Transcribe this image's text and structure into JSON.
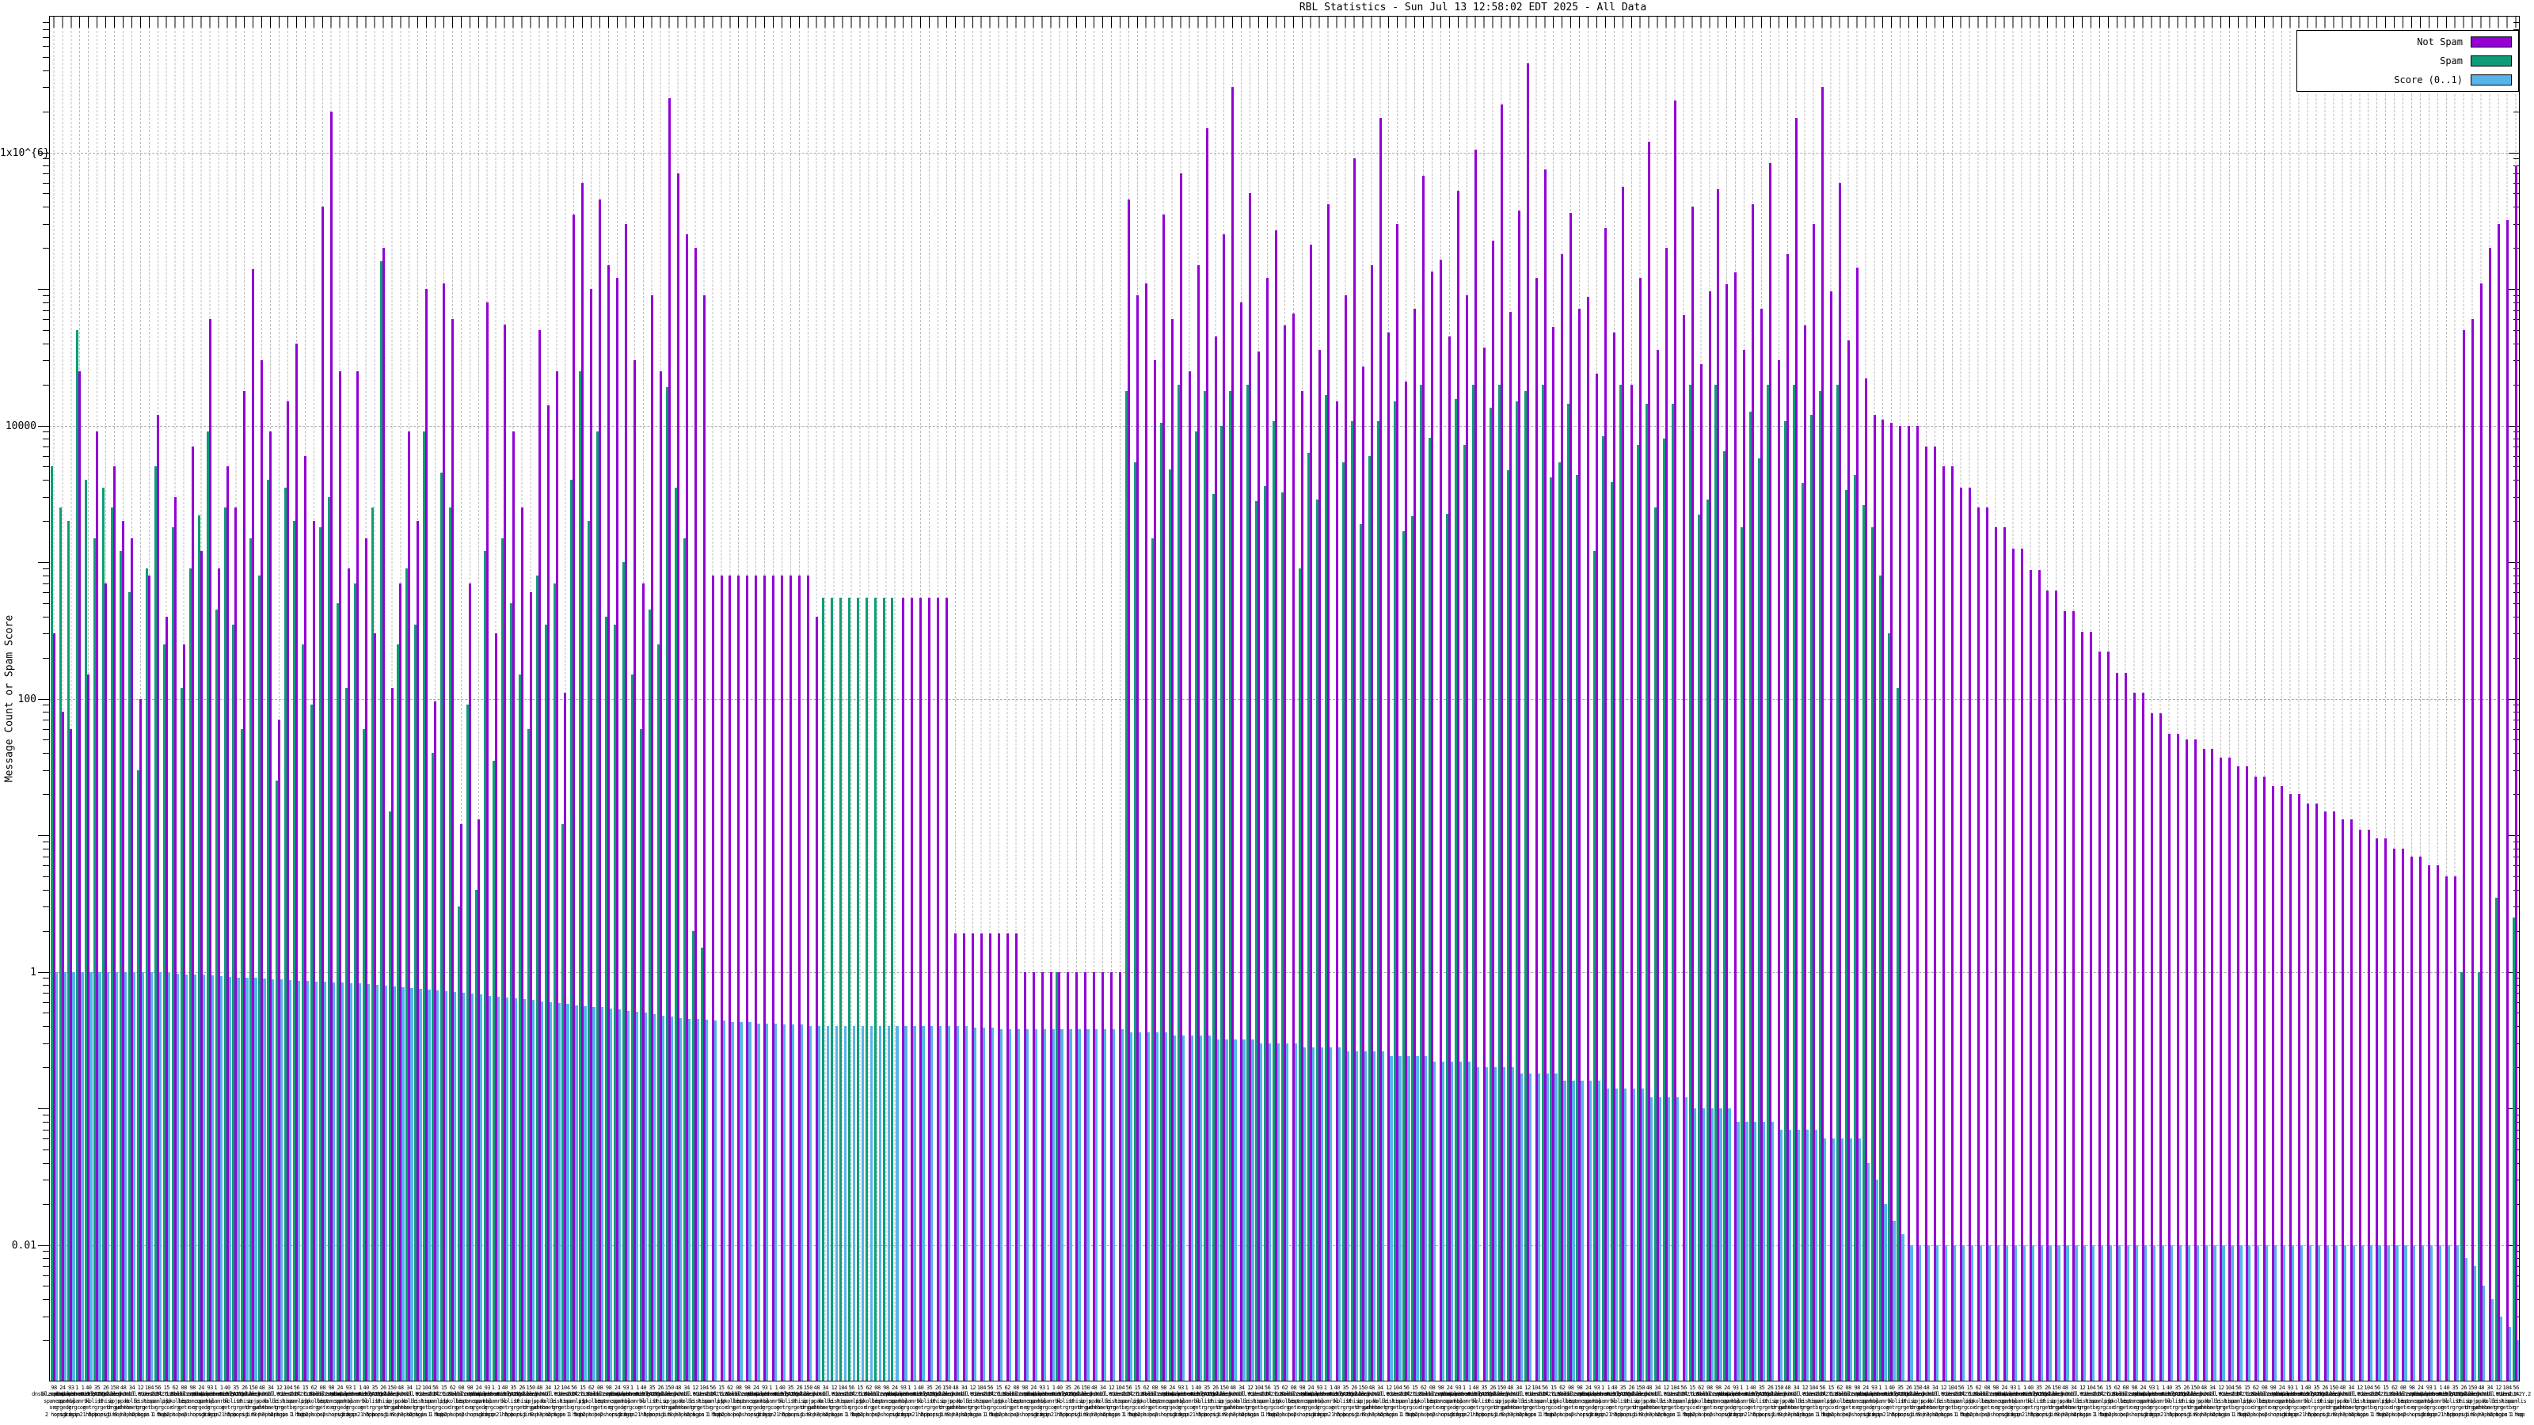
{
  "title": "RBL Statistics - Sun Jul 13 12:58:02 EDT 2025 - All Data",
  "axes": {
    "ylabel": "Message Count or Spam Score",
    "y_scale": "log",
    "ylim": [
      0.001,
      10000000
    ],
    "y_ticks": [
      {
        "label": "0.01",
        "value": 0.01
      },
      {
        "label": "1",
        "value": 1
      },
      {
        "label": "100",
        "value": 100
      },
      {
        "label": "10000",
        "value": 10000
      },
      {
        "label": "1x10^{6}",
        "value": 1000000
      }
    ]
  },
  "legend": [
    {
      "label": "Not Spam",
      "color": "#9400D3"
    },
    {
      "label": "Spam",
      "color": "#0E9C78"
    },
    {
      "label": "Score (0..1)",
      "color": "#56B4E9"
    }
  ],
  "chart_data": {
    "type": "bar",
    "y_scale": "log",
    "n_categories": 285,
    "series_order": [
      "spam",
      "not_spam",
      "score"
    ],
    "series_colors": {
      "not_spam": "#9400D3",
      "spam": "#0E9C78",
      "score": "#56B4E9"
    },
    "xtick_label_samples": [
      "98\ndnsbl.sorbs.net\nspamcop\norg\n2 hops",
      "24\nbl.spamcop.net\nspam\norgedr\norigin",
      "93\nzen.spamhaus.org\nhbl\ngr\n1 hop",
      "1 1\ndnsbl.dronebl.org\nspamrbl\ngcor\norigin 1 hop",
      "40\nb.barracudacentral.org\nko\ngetr\n2 hops",
      "35\n0.2.Y.dnsbl\nlist\ngr\n5 hops",
      "26\nl42Y.2.zen\nbhiso\ngetr\norigin",
      "150\ndnsbl.b.Y\nipjp\ndrgud\n1 hop",
      "48\nzen.dnsbl\nspab\ngehehe\n9 hops",
      "34\nhosbl.ed\nkolbe\ntonetr\n3 hops",
      "12\nbl.Y.zen\nlist\ngrg\n2 hops",
      "104\nYzen2.0\nhiso\ngetbr\norigin 1 hop",
      "56\ndnsb142Y.2\nspamlis\ngr\n1 hop",
      "15\nhbl.dnsbl\npjp\ngcor\n5 hops",
      "62\nb.Y.lis\nbkolbe\ndrg\n2 hops",
      "08\nzen.Y.Y\nlist\ngetr\nhops"
    ],
    "segments": [
      {
        "name": "left-mixed-a",
        "np": [
          300,
          80,
          60,
          25000,
          150,
          9000,
          700,
          5000,
          2000,
          1500,
          100,
          800,
          12000,
          400,
          3000,
          250,
          7000,
          1200,
          60000,
          900,
          5000,
          2500,
          18000,
          140000,
          30000,
          9000,
          70,
          15000,
          40000,
          6000,
          2000,
          400000,
          2000000,
          25000
        ],
        "sp": [
          5000,
          2500,
          2000,
          50000,
          4000,
          1500,
          3500,
          2500,
          1200,
          600,
          30,
          900,
          5000,
          250,
          1800,
          120,
          900,
          2200,
          9000,
          450,
          2500,
          350,
          60,
          1500,
          800,
          4000,
          25,
          3500,
          2000,
          250,
          90,
          1800,
          3000,
          500
        ],
        "sc": [
          {
            "v": 1,
            "n": 12
          },
          0.99,
          0.98,
          0.97,
          0.96,
          0.95,
          0.95,
          0.94,
          0.93,
          0.92,
          0.91,
          0.9,
          0.9,
          0.89,
          0.88,
          0.88,
          0.87,
          0.86,
          0.86,
          0.85,
          0.85,
          0.84,
          0.84
        ]
      },
      {
        "name": "left-mixed-b",
        "np": [
          900,
          25000,
          1500,
          300,
          200000,
          120,
          700,
          9000,
          2000,
          100000,
          95,
          110000,
          60000,
          12,
          700,
          13,
          80000,
          300,
          55000,
          9000,
          2500,
          600,
          50000,
          14000,
          25000,
          110,
          350000,
          600000,
          100000,
          450000
        ],
        "sp": [
          120,
          700,
          60,
          2500,
          160000,
          15,
          250,
          900,
          350,
          9000,
          40,
          4500,
          2500,
          3,
          90,
          4,
          1200,
          35,
          1500,
          500,
          150,
          60,
          800,
          350,
          700,
          12,
          4000,
          25000,
          2000,
          9000
        ],
        "sc": [
          0.83,
          0.82,
          0.81,
          0.8,
          0.79,
          0.78,
          0.77,
          0.76,
          0.75,
          0.74,
          0.73,
          0.72,
          0.71,
          0.7,
          0.69,
          0.68,
          0.67,
          0.66,
          0.65,
          0.64,
          0.63,
          0.62,
          0.61,
          0.6,
          0.59,
          0.58,
          0.57,
          0.56,
          0.555,
          0.55
        ]
      },
      {
        "name": "pre-plateau-spikes",
        "np": [
          150000,
          120000,
          300000,
          30000,
          700,
          90000,
          25000,
          2500000,
          700000,
          250000,
          200000,
          90000
        ],
        "sp": [
          400,
          350,
          1000,
          150,
          60,
          450,
          250,
          19000,
          3500,
          1500,
          2,
          1.5
        ],
        "sc": [
          0.54,
          0.53,
          0.52,
          0.51,
          0.5,
          0.49,
          0.48,
          0.47,
          0.46,
          0.455,
          0.45,
          0.445
        ]
      },
      {
        "name": "purple-plateau-800",
        "np": [
          {
            "v": 800,
            "n": 12
          },
          400
        ],
        "sp": [
          {
            "v": 0,
            "n": 13
          }
        ],
        "sc": [
          0.44,
          0.44,
          0.43,
          0.43,
          0.43,
          0.42,
          0.42,
          0.42,
          0.41,
          0.41,
          0.41,
          0.4,
          0.4
        ]
      },
      {
        "name": "green-plateau-550",
        "np": [
          {
            "v": 0,
            "n": 9
          }
        ],
        "sp": [
          {
            "v": 550,
            "n": 9
          }
        ],
        "sc": [
          {
            "v": 0.4,
            "n": 9
          }
        ]
      },
      {
        "name": "purple-plateau-550",
        "np": [
          {
            "v": 550,
            "n": 6
          }
        ],
        "sp": [
          {
            "v": 0,
            "n": 6
          }
        ],
        "sc": [
          {
            "v": 0.4,
            "n": 6
          }
        ]
      },
      {
        "name": "low-bars-2",
        "np": [
          {
            "v": 1.9,
            "n": 8
          }
        ],
        "sp": [
          {
            "v": 0,
            "n": 8
          }
        ],
        "sc": [
          0.4,
          0.4,
          0.39,
          0.39,
          0.39,
          0.38,
          0.38,
          0.38
        ]
      },
      {
        "name": "low-bars-1",
        "np": [
          {
            "v": 1,
            "n": 12
          }
        ],
        "sp": [
          0,
          0,
          0,
          0,
          1,
          0,
          0,
          0,
          0,
          0,
          0,
          0
        ],
        "sc": [
          {
            "v": 0.38,
            "n": 12
          }
        ]
      },
      {
        "name": "mid-spike-field",
        "np": [
          450000,
          90000,
          110000,
          30000,
          350000,
          60000,
          700000,
          25000,
          150000,
          1500000,
          45000,
          250000,
          3000000,
          80000,
          500000,
          35000,
          120000,
          270000,
          54000,
          66000,
          18000,
          210000,
          36000,
          420000,
          15000,
          90000,
          900000,
          27000,
          150000,
          1800000,
          48000,
          300000,
          21000,
          72000,
          675000,
          135000,
          165000,
          45000,
          525000,
          90000,
          1050000,
          37500,
          225000,
          2250000,
          67500,
          375000,
          4500000,
          120000,
          750000,
          52500,
          180000,
          360000,
          72000,
          88000,
          24000,
          280000,
          48000,
          560000,
          20000,
          120000,
          1200000,
          36000,
          200000,
          2400000,
          64000,
          400000,
          28000,
          96000,
          540000,
          108000,
          132000,
          36000,
          420000,
          72000,
          840000,
          30000,
          180000,
          1800000,
          54000,
          300000,
          3000000,
          96000,
          600000,
          42000,
          144000
        ],
        "sp": [
          18000,
          5400,
          0,
          1500,
          10500,
          4800,
          20000,
          0,
          9000,
          18000,
          3150,
          10000,
          18000,
          0,
          20000,
          2800,
          3600,
          10800,
          3240,
          0,
          900,
          6300,
          2880,
          16800,
          0,
          5400,
          10800,
          1890,
          6000,
          10800,
          0,
          15000,
          1680,
          2160,
          20000,
          8100,
          0,
          2250,
          15750,
          7200,
          20000,
          0,
          13500,
          20000,
          4725,
          15000,
          18000,
          0,
          20000,
          4200,
          5400,
          14400,
          4320,
          0,
          1200,
          8400,
          3840,
          20000,
          0,
          7200,
          14400,
          2520,
          8000,
          14400,
          0,
          20000,
          2240,
          2880,
          20000,
          6480,
          0,
          1800,
          12600,
          5760,
          20000,
          0,
          10800,
          20000,
          3780,
          12000,
          18000,
          0,
          20000,
          3360,
          4320
        ],
        "sc": [
          {
            "v": 0.36,
            "n": 5
          },
          {
            "v": 0.34,
            "n": 5
          },
          {
            "v": 0.32,
            "n": 5
          },
          {
            "v": 0.3,
            "n": 5
          },
          {
            "v": 0.28,
            "n": 5
          },
          {
            "v": 0.26,
            "n": 5
          },
          {
            "v": 0.24,
            "n": 5
          },
          {
            "v": 0.22,
            "n": 5
          },
          {
            "v": 0.2,
            "n": 5
          },
          {
            "v": 0.18,
            "n": 5
          },
          {
            "v": 0.16,
            "n": 5
          },
          {
            "v": 0.14,
            "n": 5
          },
          {
            "v": 0.12,
            "n": 5
          },
          {
            "v": 0.1,
            "n": 5
          },
          {
            "v": 0.08,
            "n": 5
          },
          {
            "v": 0.07,
            "n": 5
          },
          {
            "v": 0.06,
            "n": 5
          }
        ]
      },
      {
        "name": "spike-tail",
        "np": [
          22000,
          12000,
          11000,
          10500,
          10000
        ],
        "sp": [
          2600,
          1800,
          800,
          300,
          120
        ],
        "sc": [
          0.04,
          0.03,
          0.02,
          0.015,
          0.012
        ]
      },
      {
        "name": "descending-staircase",
        "np": [
          {
            "v": 10000,
            "n": 2
          },
          {
            "v": 7000,
            "n": 2
          },
          {
            "v": 5000,
            "n": 2
          },
          {
            "v": 3500,
            "n": 2
          },
          {
            "v": 2500,
            "n": 2
          },
          {
            "v": 1800,
            "n": 2
          },
          {
            "v": 1250,
            "n": 2
          },
          {
            "v": 880,
            "n": 2
          },
          {
            "v": 620,
            "n": 2
          },
          {
            "v": 440,
            "n": 2
          },
          {
            "v": 310,
            "n": 2
          },
          {
            "v": 220,
            "n": 2
          },
          {
            "v": 155,
            "n": 2
          },
          {
            "v": 110,
            "n": 2
          },
          {
            "v": 78,
            "n": 2
          },
          {
            "v": 55,
            "n": 2
          },
          {
            "v": 50,
            "n": 2
          },
          {
            "v": 43,
            "n": 2
          },
          {
            "v": 37,
            "n": 2
          },
          {
            "v": 32,
            "n": 2
          },
          {
            "v": 27,
            "n": 2
          },
          {
            "v": 23,
            "n": 2
          },
          {
            "v": 20,
            "n": 2
          },
          {
            "v": 17,
            "n": 2
          },
          {
            "v": 15,
            "n": 2
          },
          {
            "v": 13,
            "n": 2
          },
          {
            "v": 11,
            "n": 2
          },
          {
            "v": 9.5,
            "n": 2
          },
          {
            "v": 8,
            "n": 2
          },
          {
            "v": 7,
            "n": 2
          },
          {
            "v": 6,
            "n": 2
          },
          {
            "v": 5,
            "n": 2
          }
        ],
        "sp": [
          {
            "v": 0,
            "n": 64
          }
        ],
        "sc": [
          {
            "v": 0.01,
            "n": 64
          }
        ]
      },
      {
        "name": "right-rising-cluster",
        "np": [
          50000,
          60000,
          110000,
          200000,
          300000,
          320000,
          800000
        ],
        "sp": [
          1,
          0,
          1,
          0,
          3.5,
          0,
          2.5
        ],
        "sc": [
          0.008,
          0.007,
          0.005,
          0.004,
          0.003,
          0.0025,
          0.002
        ]
      }
    ]
  }
}
